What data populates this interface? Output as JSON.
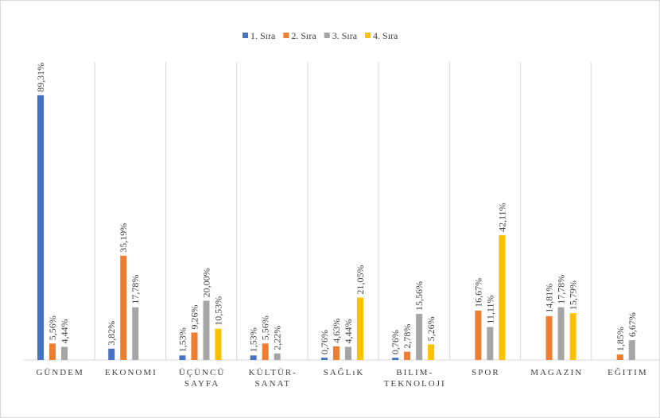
{
  "chart_data": {
    "type": "bar",
    "categories": [
      [
        "GÜNDEM"
      ],
      [
        "EKONOMI"
      ],
      [
        "ÜÇÜNCÜ",
        "SAYFA"
      ],
      [
        "KÜLTÜR-",
        "SANAT"
      ],
      [
        "SAĞLıK"
      ],
      [
        "BILIM-",
        "TEKNOLOJI"
      ],
      [
        "SPOR"
      ],
      [
        "MAGAZIN"
      ],
      [
        "EĞITIM"
      ]
    ],
    "series": [
      {
        "name": "1. Sıra",
        "color": "#4472c4",
        "values": [
          89.31,
          3.82,
          1.53,
          1.53,
          0.76,
          0.76,
          null,
          null,
          null
        ],
        "value_labels": [
          "89,31%",
          "3,82%",
          "1,53%",
          "1,53%",
          "0,76%",
          "0,76%",
          null,
          null,
          null
        ]
      },
      {
        "name": "2. Sıra",
        "color": "#ed7d31",
        "values": [
          5.56,
          35.19,
          9.26,
          5.56,
          4.63,
          2.78,
          16.67,
          14.81,
          1.85
        ],
        "value_labels": [
          "5,56%",
          "35,19%",
          "9,26%",
          "5,56%",
          "4,63%",
          "2,78%",
          "16,67%",
          "14,81%",
          "1,85%"
        ]
      },
      {
        "name": "3. Sıra",
        "color": "#a5a5a5",
        "values": [
          4.44,
          17.78,
          20.0,
          2.22,
          4.44,
          15.56,
          11.11,
          17.78,
          6.67
        ],
        "value_labels": [
          "4,44%",
          "17,78%",
          "20,00%",
          "2,22%",
          "4,44%",
          "15,56%",
          "11,11%",
          "17,78%",
          "6,67%"
        ]
      },
      {
        "name": "4. Sıra",
        "color": "#ffc000",
        "values": [
          null,
          null,
          10.53,
          null,
          21.05,
          5.26,
          42.11,
          15.79,
          null
        ],
        "value_labels": [
          null,
          null,
          "10,53%",
          null,
          "21,05%",
          "5,26%",
          "42,11%",
          "15,79%",
          null
        ]
      }
    ],
    "ylim": [
      0,
      100
    ],
    "legend": "top"
  }
}
